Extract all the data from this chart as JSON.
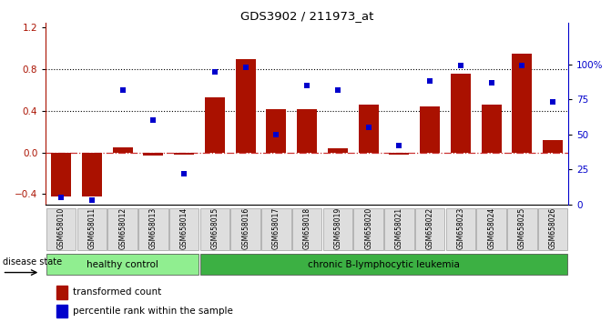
{
  "title": "GDS3902 / 211973_at",
  "samples": [
    "GSM658010",
    "GSM658011",
    "GSM658012",
    "GSM658013",
    "GSM658014",
    "GSM658015",
    "GSM658016",
    "GSM658017",
    "GSM658018",
    "GSM658019",
    "GSM658020",
    "GSM658021",
    "GSM658022",
    "GSM658023",
    "GSM658024",
    "GSM658025",
    "GSM658026"
  ],
  "bar_values": [
    -0.42,
    -0.42,
    0.05,
    -0.03,
    -0.02,
    0.53,
    0.9,
    0.42,
    0.42,
    0.04,
    0.46,
    -0.02,
    0.44,
    0.76,
    0.46,
    0.95,
    0.12
  ],
  "dot_values": [
    5,
    3,
    82,
    60,
    22,
    95,
    98,
    50,
    85,
    82,
    55,
    42,
    88,
    99,
    87,
    99,
    73
  ],
  "bar_color": "#AA1100",
  "dot_color": "#0000CC",
  "ylim_left": [
    -0.5,
    1.25
  ],
  "ylim_right": [
    0,
    130
  ],
  "yticks_left": [
    -0.4,
    0.0,
    0.4,
    0.8,
    1.2
  ],
  "yticks_right": [
    0,
    25,
    50,
    75,
    100
  ],
  "ytick_labels_right": [
    "0",
    "25",
    "50",
    "75",
    "100%"
  ],
  "hlines": [
    0.4,
    0.8
  ],
  "hline_zero_color": "#CC3333",
  "hline_grid_color": "black",
  "group_labels": [
    "healthy control",
    "chronic B-lymphocytic leukemia"
  ],
  "n_healthy": 5,
  "n_chronic": 12,
  "group_color_healthy": "#90EE90",
  "group_color_chronic": "#3CB043",
  "disease_state_label": "disease state",
  "legend_items": [
    "transformed count",
    "percentile rank within the sample"
  ],
  "legend_colors": [
    "#AA1100",
    "#0000CC"
  ],
  "background_color": "#FFFFFF"
}
